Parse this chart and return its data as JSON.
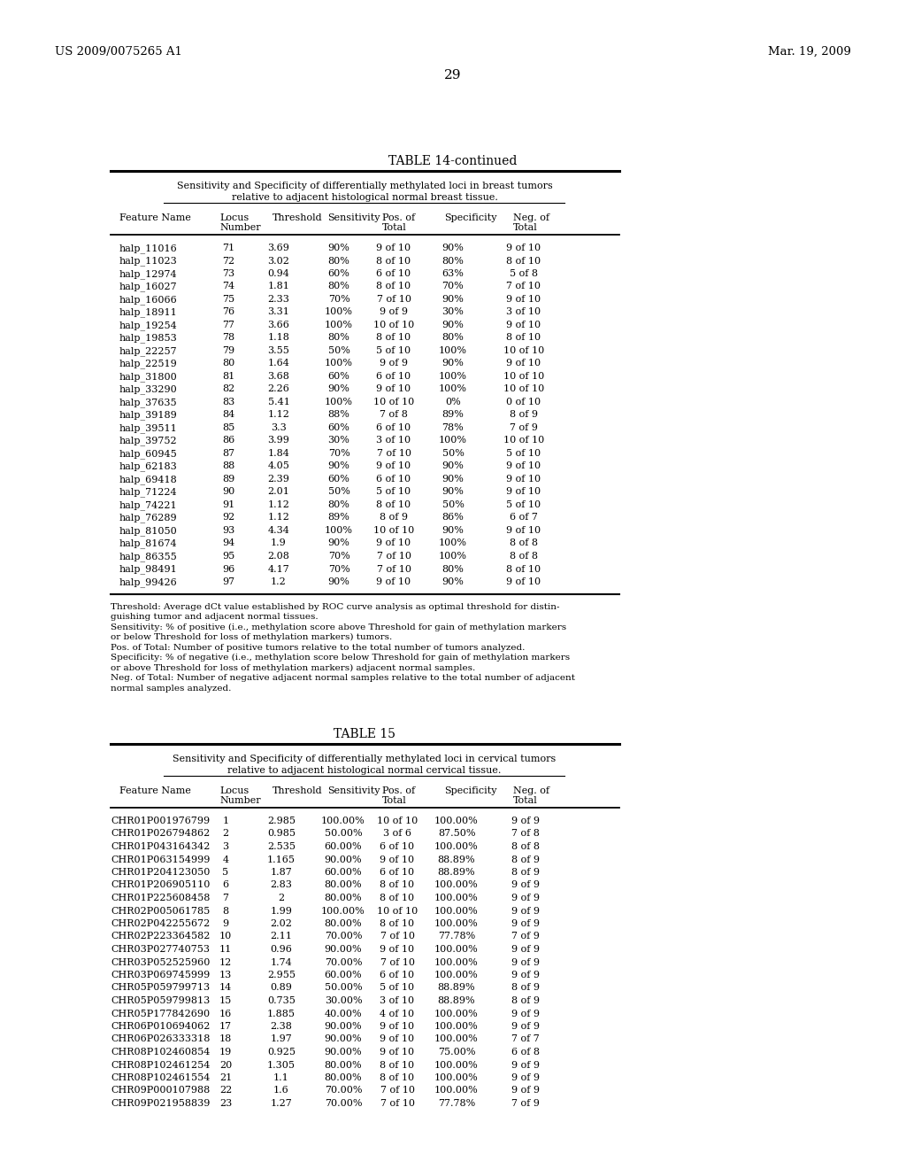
{
  "header_left": "US 2009/0075265 A1",
  "header_right": "Mar. 19, 2009",
  "page_number": "29",
  "table14_title": "TABLE 14-continued",
  "table14_subtitle1": "Sensitivity and Specificity of differentially methylated loci in breast tumors",
  "table14_subtitle2": "relative to adjacent histological normal breast tissue.",
  "table14_data": [
    [
      "halp_11016",
      "71",
      "3.69",
      "90%",
      "9 of 10",
      "90%",
      "9 of 10"
    ],
    [
      "halp_11023",
      "72",
      "3.02",
      "80%",
      "8 of 10",
      "80%",
      "8 of 10"
    ],
    [
      "halp_12974",
      "73",
      "0.94",
      "60%",
      "6 of 10",
      "63%",
      "5 of 8"
    ],
    [
      "halp_16027",
      "74",
      "1.81",
      "80%",
      "8 of 10",
      "70%",
      "7 of 10"
    ],
    [
      "halp_16066",
      "75",
      "2.33",
      "70%",
      "7 of 10",
      "90%",
      "9 of 10"
    ],
    [
      "halp_18911",
      "76",
      "3.31",
      "100%",
      "9 of 9",
      "30%",
      "3 of 10"
    ],
    [
      "halp_19254",
      "77",
      "3.66",
      "100%",
      "10 of 10",
      "90%",
      "9 of 10"
    ],
    [
      "halp_19853",
      "78",
      "1.18",
      "80%",
      "8 of 10",
      "80%",
      "8 of 10"
    ],
    [
      "halp_22257",
      "79",
      "3.55",
      "50%",
      "5 of 10",
      "100%",
      "10 of 10"
    ],
    [
      "halp_22519",
      "80",
      "1.64",
      "100%",
      "9 of 9",
      "90%",
      "9 of 10"
    ],
    [
      "halp_31800",
      "81",
      "3.68",
      "60%",
      "6 of 10",
      "100%",
      "10 of 10"
    ],
    [
      "halp_33290",
      "82",
      "2.26",
      "90%",
      "9 of 10",
      "100%",
      "10 of 10"
    ],
    [
      "halp_37635",
      "83",
      "5.41",
      "100%",
      "10 of 10",
      "0%",
      "0 of 10"
    ],
    [
      "halp_39189",
      "84",
      "1.12",
      "88%",
      "7 of 8",
      "89%",
      "8 of 9"
    ],
    [
      "halp_39511",
      "85",
      "3.3",
      "60%",
      "6 of 10",
      "78%",
      "7 of 9"
    ],
    [
      "halp_39752",
      "86",
      "3.99",
      "30%",
      "3 of 10",
      "100%",
      "10 of 10"
    ],
    [
      "halp_60945",
      "87",
      "1.84",
      "70%",
      "7 of 10",
      "50%",
      "5 of 10"
    ],
    [
      "halp_62183",
      "88",
      "4.05",
      "90%",
      "9 of 10",
      "90%",
      "9 of 10"
    ],
    [
      "halp_69418",
      "89",
      "2.39",
      "60%",
      "6 of 10",
      "90%",
      "9 of 10"
    ],
    [
      "halp_71224",
      "90",
      "2.01",
      "50%",
      "5 of 10",
      "90%",
      "9 of 10"
    ],
    [
      "halp_74221",
      "91",
      "1.12",
      "80%",
      "8 of 10",
      "50%",
      "5 of 10"
    ],
    [
      "halp_76289",
      "92",
      "1.12",
      "89%",
      "8 of 9",
      "86%",
      "6 of 7"
    ],
    [
      "halp_81050",
      "93",
      "4.34",
      "100%",
      "10 of 10",
      "90%",
      "9 of 10"
    ],
    [
      "halp_81674",
      "94",
      "1.9",
      "90%",
      "9 of 10",
      "100%",
      "8 of 8"
    ],
    [
      "halp_86355",
      "95",
      "2.08",
      "70%",
      "7 of 10",
      "100%",
      "8 of 8"
    ],
    [
      "halp_98491",
      "96",
      "4.17",
      "70%",
      "7 of 10",
      "80%",
      "8 of 10"
    ],
    [
      "halp_99426",
      "97",
      "1.2",
      "90%",
      "9 of 10",
      "90%",
      "9 of 10"
    ]
  ],
  "table14_footnotes": [
    "Threshold: Average dCt value established by ROC curve analysis as optimal threshold for distin-",
    "guishing tumor and adjacent normal tissues.",
    "Sensitivity: % of positive (i.e., methylation score above Threshold for gain of methylation markers",
    "or below Threshold for loss of methylation markers) tumors.",
    "Pos. of Total: Number of positive tumors relative to the total number of tumors analyzed.",
    "Specificity: % of negative (i.e., methylation score below Threshold for gain of methylation markers",
    "or above Threshold for loss of methylation markers) adjacent normal samples.",
    "Neg. of Total: Number of negative adjacent normal samples relative to the total number of adjacent",
    "normal samples analyzed."
  ],
  "table15_title": "TABLE 15",
  "table15_subtitle1": "Sensitivity and Specificity of differentially methylated loci in cervical tumors",
  "table15_subtitle2": "relative to adjacent histological normal cervical tissue.",
  "table15_data": [
    [
      "CHR01P001976799",
      "1",
      "2.985",
      "100.00%",
      "10 of 10",
      "100.00%",
      "9 of 9"
    ],
    [
      "CHR01P026794862",
      "2",
      "0.985",
      "50.00%",
      "3 of 6",
      "87.50%",
      "7 of 8"
    ],
    [
      "CHR01P043164342",
      "3",
      "2.535",
      "60.00%",
      "6 of 10",
      "100.00%",
      "8 of 8"
    ],
    [
      "CHR01P063154999",
      "4",
      "1.165",
      "90.00%",
      "9 of 10",
      "88.89%",
      "8 of 9"
    ],
    [
      "CHR01P204123050",
      "5",
      "1.87",
      "60.00%",
      "6 of 10",
      "88.89%",
      "8 of 9"
    ],
    [
      "CHR01P206905110",
      "6",
      "2.83",
      "80.00%",
      "8 of 10",
      "100.00%",
      "9 of 9"
    ],
    [
      "CHR01P225608458",
      "7",
      "2",
      "80.00%",
      "8 of 10",
      "100.00%",
      "9 of 9"
    ],
    [
      "CHR02P005061785",
      "8",
      "1.99",
      "100.00%",
      "10 of 10",
      "100.00%",
      "9 of 9"
    ],
    [
      "CHR02P042255672",
      "9",
      "2.02",
      "80.00%",
      "8 of 10",
      "100.00%",
      "9 of 9"
    ],
    [
      "CHR02P223364582",
      "10",
      "2.11",
      "70.00%",
      "7 of 10",
      "77.78%",
      "7 of 9"
    ],
    [
      "CHR03P027740753",
      "11",
      "0.96",
      "90.00%",
      "9 of 10",
      "100.00%",
      "9 of 9"
    ],
    [
      "CHR03P052525960",
      "12",
      "1.74",
      "70.00%",
      "7 of 10",
      "100.00%",
      "9 of 9"
    ],
    [
      "CHR03P069745999",
      "13",
      "2.955",
      "60.00%",
      "6 of 10",
      "100.00%",
      "9 of 9"
    ],
    [
      "CHR05P059799713",
      "14",
      "0.89",
      "50.00%",
      "5 of 10",
      "88.89%",
      "8 of 9"
    ],
    [
      "CHR05P059799813",
      "15",
      "0.735",
      "30.00%",
      "3 of 10",
      "88.89%",
      "8 of 9"
    ],
    [
      "CHR05P177842690",
      "16",
      "1.885",
      "40.00%",
      "4 of 10",
      "100.00%",
      "9 of 9"
    ],
    [
      "CHR06P010694062",
      "17",
      "2.38",
      "90.00%",
      "9 of 10",
      "100.00%",
      "9 of 9"
    ],
    [
      "CHR06P026333318",
      "18",
      "1.97",
      "90.00%",
      "9 of 10",
      "100.00%",
      "7 of 7"
    ],
    [
      "CHR08P102460854",
      "19",
      "0.925",
      "90.00%",
      "9 of 10",
      "75.00%",
      "6 of 8"
    ],
    [
      "CHR08P102461254",
      "20",
      "1.305",
      "80.00%",
      "8 of 10",
      "100.00%",
      "9 of 9"
    ],
    [
      "CHR08P102461554",
      "21",
      "1.1",
      "80.00%",
      "8 of 10",
      "100.00%",
      "9 of 9"
    ],
    [
      "CHR09P000107988",
      "22",
      "1.6",
      "70.00%",
      "7 of 10",
      "100.00%",
      "9 of 9"
    ],
    [
      "CHR09P021958839",
      "23",
      "1.27",
      "70.00%",
      "7 of 10",
      "77.78%",
      "7 of 9"
    ]
  ]
}
